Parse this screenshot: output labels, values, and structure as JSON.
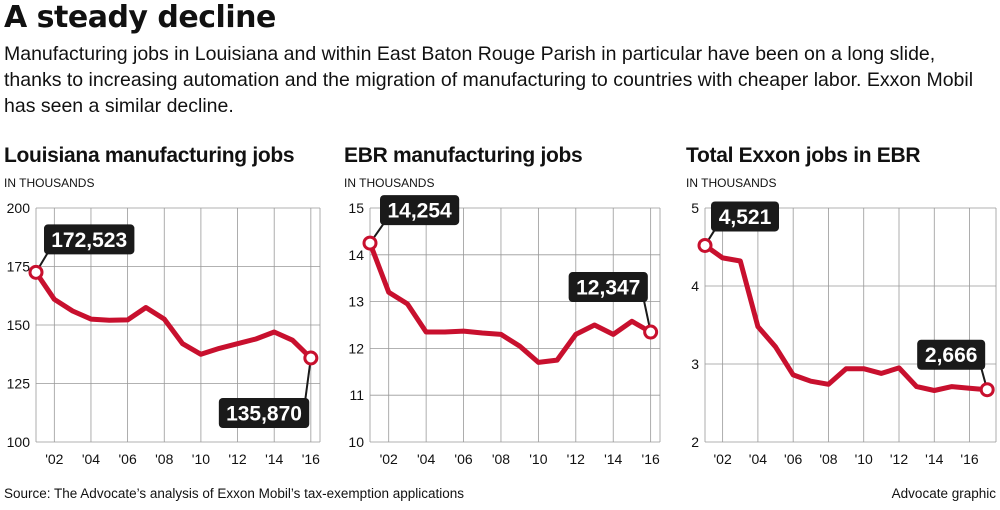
{
  "headline": "A steady decline",
  "dek": "Manufacturing jobs in Louisiana and within East Baton Rouge Parish in particular have been on a long slide, thanks to increasing automation and the migration of manufacturing to countries with cheaper labor. Exxon Mobil has seen a similar decline.",
  "source": "Source: The Advocate’s analysis of Exxon Mobil’s tax-exemption applications",
  "credit": "Advocate graphic",
  "colors": {
    "line": "#c8102e",
    "callout": "#1a1a1a",
    "grid": "#999999"
  },
  "chart_data": [
    {
      "type": "line",
      "title": "Louisiana manufacturing jobs",
      "ylabel": "IN THOUSANDS",
      "ylim": [
        100,
        200
      ],
      "yticks": [
        "100",
        "125",
        "150",
        "175",
        "200"
      ],
      "xlim": [
        2001,
        2016.5
      ],
      "xticks": [
        "'02",
        "'04",
        "'06",
        "'08",
        "'10",
        "'12",
        "'14",
        "'16"
      ],
      "grid": true,
      "series": [
        {
          "x": [
            2001,
            2002,
            2003,
            2004,
            2005,
            2006,
            2007,
            2008,
            2009,
            2010,
            2011,
            2012,
            2013,
            2014,
            2015,
            2016
          ],
          "y": [
            172.5,
            161,
            156,
            152.5,
            152,
            152.2,
            157.5,
            152.5,
            142,
            137.5,
            140,
            142,
            144,
            147,
            143.5,
            135.9
          ]
        }
      ],
      "annotations": [
        {
          "label": "172,523",
          "x": 2001,
          "y": 172.5
        },
        {
          "label": "135,870",
          "x": 2016,
          "y": 135.9
        }
      ]
    },
    {
      "type": "line",
      "title": "EBR manufacturing jobs",
      "ylabel": "IN THOUSANDS",
      "ylim": [
        10,
        15
      ],
      "yticks": [
        "10",
        "11",
        "12",
        "13",
        "14",
        "15"
      ],
      "xlim": [
        2001,
        2016.5
      ],
      "xticks": [
        "'02",
        "'04",
        "'06",
        "'08",
        "'10",
        "'12",
        "'14",
        "'16"
      ],
      "grid": true,
      "series": [
        {
          "x": [
            2001,
            2002,
            2003,
            2004,
            2005,
            2006,
            2007,
            2008,
            2009,
            2010,
            2011,
            2012,
            2013,
            2014,
            2015,
            2016
          ],
          "y": [
            14.25,
            13.2,
            12.95,
            12.35,
            12.35,
            12.37,
            12.33,
            12.3,
            12.05,
            11.7,
            11.75,
            12.3,
            12.5,
            12.3,
            12.58,
            12.35
          ]
        }
      ],
      "annotations": [
        {
          "label": "14,254",
          "x": 2001,
          "y": 14.25
        },
        {
          "label": "12,347",
          "x": 2016,
          "y": 12.35
        }
      ]
    },
    {
      "type": "line",
      "title": "Total Exxon jobs in EBR",
      "ylabel": "IN THOUSANDS",
      "ylim": [
        2,
        5
      ],
      "yticks": [
        "2",
        "3",
        "4",
        "5"
      ],
      "xlim": [
        2001,
        2017.5
      ],
      "xticks": [
        "'02",
        "'04",
        "'06",
        "'08",
        "'10",
        "'12",
        "'14",
        "'16"
      ],
      "grid": true,
      "series": [
        {
          "x": [
            2001,
            2002,
            2003,
            2004,
            2005,
            2006,
            2007,
            2008,
            2009,
            2010,
            2011,
            2012,
            2013,
            2014,
            2015,
            2016,
            2017
          ],
          "y": [
            4.52,
            4.36,
            4.32,
            3.48,
            3.22,
            2.86,
            2.78,
            2.74,
            2.94,
            2.94,
            2.88,
            2.95,
            2.71,
            2.66,
            2.71,
            2.69,
            2.67
          ]
        }
      ],
      "annotations": [
        {
          "label": "4,521",
          "x": 2001,
          "y": 4.52
        },
        {
          "label": "2,666",
          "x": 2017,
          "y": 2.67
        }
      ]
    }
  ]
}
